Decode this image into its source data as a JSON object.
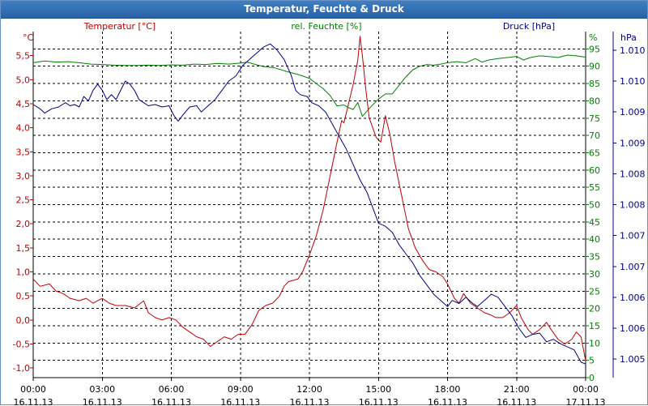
{
  "window": {
    "title": "Temperatur, Feuchte & Druck"
  },
  "colors": {
    "temperature": "#c00000",
    "humidity": "#008000",
    "pressure": "#00008b",
    "grid": "#000000",
    "axis": "#000000"
  },
  "chart_data": {
    "type": "line",
    "title": "Temperatur, Feuchte & Druck",
    "x_ticks": [
      {
        "time": "00:00",
        "date": "16.11.13"
      },
      {
        "time": "03:00",
        "date": "16.11.13"
      },
      {
        "time": "06:00",
        "date": "16.11.13"
      },
      {
        "time": "09:00",
        "date": "16.11.13"
      },
      {
        "time": "12:00",
        "date": "16.11.13"
      },
      {
        "time": "15:00",
        "date": "16.11.13"
      },
      {
        "time": "18:00",
        "date": "16.11.13"
      },
      {
        "time": "21:00",
        "date": "16.11.13"
      },
      {
        "time": "00:00",
        "date": "17.11.13"
      }
    ],
    "xlim": [
      0,
      24
    ],
    "axes": {
      "temperature": {
        "unit": "°C",
        "label": "Temperatur [°C]",
        "ylim": [
          -1.2,
          6.0
        ],
        "ticks": [
          -1.0,
          -0.5,
          0.0,
          0.5,
          1.0,
          1.5,
          2.0,
          2.5,
          3.0,
          3.5,
          4.0,
          4.5,
          5.0,
          5.5
        ],
        "tick_labels": [
          "-1,0",
          "-0,5",
          "0,0",
          "0,5",
          "1,0",
          "1,5",
          "2,0",
          "2,5",
          "3,0",
          "3,5",
          "4,0",
          "4,5",
          "5,0",
          "5,5"
        ]
      },
      "humidity": {
        "unit": "%",
        "label": "rel. Feuchte [%]",
        "ylim": [
          0,
          100
        ],
        "ticks": [
          0,
          5,
          10,
          15,
          20,
          25,
          30,
          35,
          40,
          45,
          50,
          55,
          60,
          65,
          70,
          75,
          80,
          85,
          90,
          95
        ],
        "tick_labels": [
          "0",
          "5",
          "10",
          "15",
          "20",
          "25",
          "30",
          "35",
          "40",
          "45",
          "50",
          "55",
          "60",
          "65",
          "70",
          "75",
          "80",
          "85",
          "90",
          "95"
        ]
      },
      "pressure": {
        "unit": "hPa",
        "label": "Druck [hPa]",
        "ylim": [
          1004.7,
          1010.3
        ],
        "ticks": [
          1005.0,
          1005.5,
          1006.0,
          1006.5,
          1007.0,
          1007.5,
          1008.0,
          1008.5,
          1009.0,
          1009.5,
          1010.0
        ],
        "tick_labels": [
          "1.005",
          "1.006",
          "1.006",
          "1.007",
          "1.007",
          "1.008",
          "1.008",
          "1.009",
          "1.009",
          "1.010",
          "1.010"
        ]
      }
    },
    "series": [
      {
        "name": "Temperatur [°C]",
        "axis": "temperature",
        "points": [
          [
            0,
            0.85
          ],
          [
            0.3,
            0.7
          ],
          [
            0.7,
            0.75
          ],
          [
            1.0,
            0.6
          ],
          [
            1.3,
            0.55
          ],
          [
            1.6,
            0.45
          ],
          [
            2.0,
            0.4
          ],
          [
            2.3,
            0.45
          ],
          [
            2.6,
            0.35
          ],
          [
            3.0,
            0.45
          ],
          [
            3.3,
            0.35
          ],
          [
            3.6,
            0.3
          ],
          [
            4.0,
            0.3
          ],
          [
            4.4,
            0.25
          ],
          [
            4.8,
            0.4
          ],
          [
            5.0,
            0.15
          ],
          [
            5.3,
            0.05
          ],
          [
            5.6,
            0.0
          ],
          [
            5.9,
            0.05
          ],
          [
            6.2,
            0.0
          ],
          [
            6.5,
            -0.15
          ],
          [
            6.8,
            -0.25
          ],
          [
            7.1,
            -0.35
          ],
          [
            7.4,
            -0.4
          ],
          [
            7.7,
            -0.55
          ],
          [
            8.0,
            -0.45
          ],
          [
            8.3,
            -0.35
          ],
          [
            8.6,
            -0.4
          ],
          [
            8.9,
            -0.3
          ],
          [
            9.2,
            -0.3
          ],
          [
            9.5,
            -0.1
          ],
          [
            9.8,
            0.2
          ],
          [
            10.1,
            0.3
          ],
          [
            10.4,
            0.35
          ],
          [
            10.7,
            0.5
          ],
          [
            10.9,
            0.7
          ],
          [
            11.1,
            0.8
          ],
          [
            11.5,
            0.85
          ],
          [
            11.7,
            1.0
          ],
          [
            12.0,
            1.35
          ],
          [
            12.3,
            1.75
          ],
          [
            12.6,
            2.3
          ],
          [
            12.9,
            3.0
          ],
          [
            13.2,
            3.7
          ],
          [
            13.4,
            4.15
          ],
          [
            13.5,
            4.1
          ],
          [
            13.7,
            4.5
          ],
          [
            13.9,
            4.9
          ],
          [
            14.0,
            5.15
          ],
          [
            14.1,
            5.4
          ],
          [
            14.2,
            5.9
          ],
          [
            14.3,
            5.5
          ],
          [
            14.45,
            4.8
          ],
          [
            14.6,
            4.2
          ],
          [
            14.75,
            4.0
          ],
          [
            14.9,
            3.8
          ],
          [
            15.1,
            3.7
          ],
          [
            15.3,
            4.25
          ],
          [
            15.5,
            3.85
          ],
          [
            15.7,
            3.3
          ],
          [
            16.0,
            2.6
          ],
          [
            16.3,
            1.9
          ],
          [
            16.6,
            1.5
          ],
          [
            16.9,
            1.25
          ],
          [
            17.2,
            1.05
          ],
          [
            17.5,
            1.0
          ],
          [
            17.8,
            0.9
          ],
          [
            18.0,
            0.75
          ],
          [
            18.3,
            0.45
          ],
          [
            18.5,
            0.35
          ],
          [
            18.7,
            0.55
          ],
          [
            19.0,
            0.35
          ],
          [
            19.3,
            0.25
          ],
          [
            19.6,
            0.15
          ],
          [
            19.9,
            0.1
          ],
          [
            20.1,
            0.05
          ],
          [
            20.4,
            0.05
          ],
          [
            20.7,
            0.15
          ],
          [
            21.0,
            0.3
          ],
          [
            21.2,
            0.05
          ],
          [
            21.5,
            -0.2
          ],
          [
            21.7,
            -0.3
          ],
          [
            22.0,
            -0.2
          ],
          [
            22.3,
            -0.05
          ],
          [
            22.5,
            -0.2
          ],
          [
            22.8,
            -0.4
          ],
          [
            23.1,
            -0.5
          ],
          [
            23.4,
            -0.4
          ],
          [
            23.6,
            -0.25
          ],
          [
            23.8,
            -0.35
          ],
          [
            24.0,
            -0.85
          ]
        ]
      },
      {
        "name": "rel. Feuchte [%]",
        "axis": "humidity",
        "points": [
          [
            0,
            91
          ],
          [
            0.5,
            91.5
          ],
          [
            1.0,
            91.2
          ],
          [
            1.5,
            91.3
          ],
          [
            2.0,
            91
          ],
          [
            2.5,
            90.6
          ],
          [
            3.0,
            90.5
          ],
          [
            3.5,
            90.3
          ],
          [
            4.0,
            90.2
          ],
          [
            4.5,
            90.2
          ],
          [
            5.0,
            90.3
          ],
          [
            5.5,
            90.2
          ],
          [
            6.0,
            90.4
          ],
          [
            6.5,
            90.3
          ],
          [
            7.0,
            90.6
          ],
          [
            7.5,
            90.5
          ],
          [
            8.0,
            90.8
          ],
          [
            8.5,
            90.6
          ],
          [
            9.0,
            90.9
          ],
          [
            9.3,
            91.2
          ],
          [
            9.6,
            90.6
          ],
          [
            10.0,
            89.9
          ],
          [
            10.5,
            89.5
          ],
          [
            11.0,
            88.5
          ],
          [
            11.5,
            87.6
          ],
          [
            12.0,
            86.5
          ],
          [
            12.3,
            85
          ],
          [
            12.6,
            83.5
          ],
          [
            12.9,
            81.5
          ],
          [
            13.2,
            78.5
          ],
          [
            13.5,
            78.8
          ],
          [
            13.7,
            78.0
          ],
          [
            13.9,
            77.5
          ],
          [
            14.1,
            79.5
          ],
          [
            14.3,
            75.5
          ],
          [
            14.5,
            77.0
          ],
          [
            14.7,
            78.5
          ],
          [
            15.0,
            80.5
          ],
          [
            15.3,
            82.0
          ],
          [
            15.6,
            82.0
          ],
          [
            15.9,
            84.5
          ],
          [
            16.2,
            87.0
          ],
          [
            16.5,
            89.0
          ],
          [
            16.8,
            90.0
          ],
          [
            17.1,
            90.5
          ],
          [
            17.4,
            90.3
          ],
          [
            17.7,
            90.6
          ],
          [
            18.0,
            91.0
          ],
          [
            18.4,
            91.3
          ],
          [
            18.8,
            91.0
          ],
          [
            19.2,
            92.2
          ],
          [
            19.5,
            91.2
          ],
          [
            19.8,
            91.8
          ],
          [
            20.2,
            92.2
          ],
          [
            20.6,
            92.5
          ],
          [
            21.0,
            92.8
          ],
          [
            21.3,
            91.8
          ],
          [
            21.6,
            92.5
          ],
          [
            22.0,
            93.0
          ],
          [
            22.4,
            92.8
          ],
          [
            22.8,
            92.5
          ],
          [
            23.2,
            93.2
          ],
          [
            23.6,
            93.0
          ],
          [
            24.0,
            92.6
          ]
        ]
      },
      {
        "name": "Druck [hPa]",
        "axis": "pressure",
        "points": [
          [
            0,
            1009.12
          ],
          [
            0.3,
            1009.05
          ],
          [
            0.5,
            1008.98
          ],
          [
            0.8,
            1009.05
          ],
          [
            1.1,
            1009.08
          ],
          [
            1.4,
            1009.15
          ],
          [
            1.6,
            1009.1
          ],
          [
            1.8,
            1009.12
          ],
          [
            2.0,
            1009.08
          ],
          [
            2.2,
            1009.25
          ],
          [
            2.4,
            1009.18
          ],
          [
            2.6,
            1009.35
          ],
          [
            2.8,
            1009.45
          ],
          [
            3.0,
            1009.35
          ],
          [
            3.2,
            1009.2
          ],
          [
            3.4,
            1009.28
          ],
          [
            3.6,
            1009.2
          ],
          [
            3.8,
            1009.35
          ],
          [
            4.0,
            1009.5
          ],
          [
            4.2,
            1009.45
          ],
          [
            4.4,
            1009.35
          ],
          [
            4.6,
            1009.2
          ],
          [
            4.8,
            1009.15
          ],
          [
            5.0,
            1009.1
          ],
          [
            5.3,
            1009.12
          ],
          [
            5.6,
            1009.08
          ],
          [
            5.9,
            1009.1
          ],
          [
            6.1,
            1008.95
          ],
          [
            6.3,
            1008.85
          ],
          [
            6.5,
            1008.95
          ],
          [
            6.8,
            1009.08
          ],
          [
            7.1,
            1009.1
          ],
          [
            7.3,
            1009.0
          ],
          [
            7.6,
            1009.1
          ],
          [
            7.9,
            1009.2
          ],
          [
            8.2,
            1009.35
          ],
          [
            8.5,
            1009.5
          ],
          [
            8.8,
            1009.58
          ],
          [
            9.1,
            1009.75
          ],
          [
            9.4,
            1009.85
          ],
          [
            9.7,
            1009.95
          ],
          [
            10.0,
            1010.05
          ],
          [
            10.3,
            1010.1
          ],
          [
            10.6,
            1010.0
          ],
          [
            10.9,
            1009.85
          ],
          [
            11.2,
            1009.6
          ],
          [
            11.4,
            1009.35
          ],
          [
            11.6,
            1009.28
          ],
          [
            11.9,
            1009.25
          ],
          [
            12.1,
            1009.15
          ],
          [
            12.4,
            1009.1
          ],
          [
            12.7,
            1009.0
          ],
          [
            13.0,
            1008.8
          ],
          [
            13.3,
            1008.6
          ],
          [
            13.6,
            1008.4
          ],
          [
            13.9,
            1008.15
          ],
          [
            14.2,
            1007.9
          ],
          [
            14.5,
            1007.7
          ],
          [
            14.8,
            1007.4
          ],
          [
            15.0,
            1007.2
          ],
          [
            15.3,
            1007.15
          ],
          [
            15.6,
            1007.05
          ],
          [
            15.9,
            1006.85
          ],
          [
            16.2,
            1006.7
          ],
          [
            16.5,
            1006.55
          ],
          [
            16.8,
            1006.35
          ],
          [
            17.1,
            1006.2
          ],
          [
            17.4,
            1006.05
          ],
          [
            17.7,
            1005.95
          ],
          [
            18.0,
            1005.85
          ],
          [
            18.2,
            1005.95
          ],
          [
            18.5,
            1005.9
          ],
          [
            18.8,
            1006.0
          ],
          [
            19.1,
            1005.9
          ],
          [
            19.3,
            1005.85
          ],
          [
            19.6,
            1005.95
          ],
          [
            19.9,
            1006.05
          ],
          [
            20.2,
            1006.0
          ],
          [
            20.5,
            1005.85
          ],
          [
            20.8,
            1005.7
          ],
          [
            21.1,
            1005.5
          ],
          [
            21.4,
            1005.35
          ],
          [
            21.7,
            1005.4
          ],
          [
            22.0,
            1005.42
          ],
          [
            22.3,
            1005.28
          ],
          [
            22.6,
            1005.32
          ],
          [
            22.9,
            1005.25
          ],
          [
            23.2,
            1005.2
          ],
          [
            23.5,
            1005.15
          ],
          [
            23.8,
            1004.95
          ],
          [
            24.0,
            1004.92
          ]
        ]
      }
    ]
  }
}
